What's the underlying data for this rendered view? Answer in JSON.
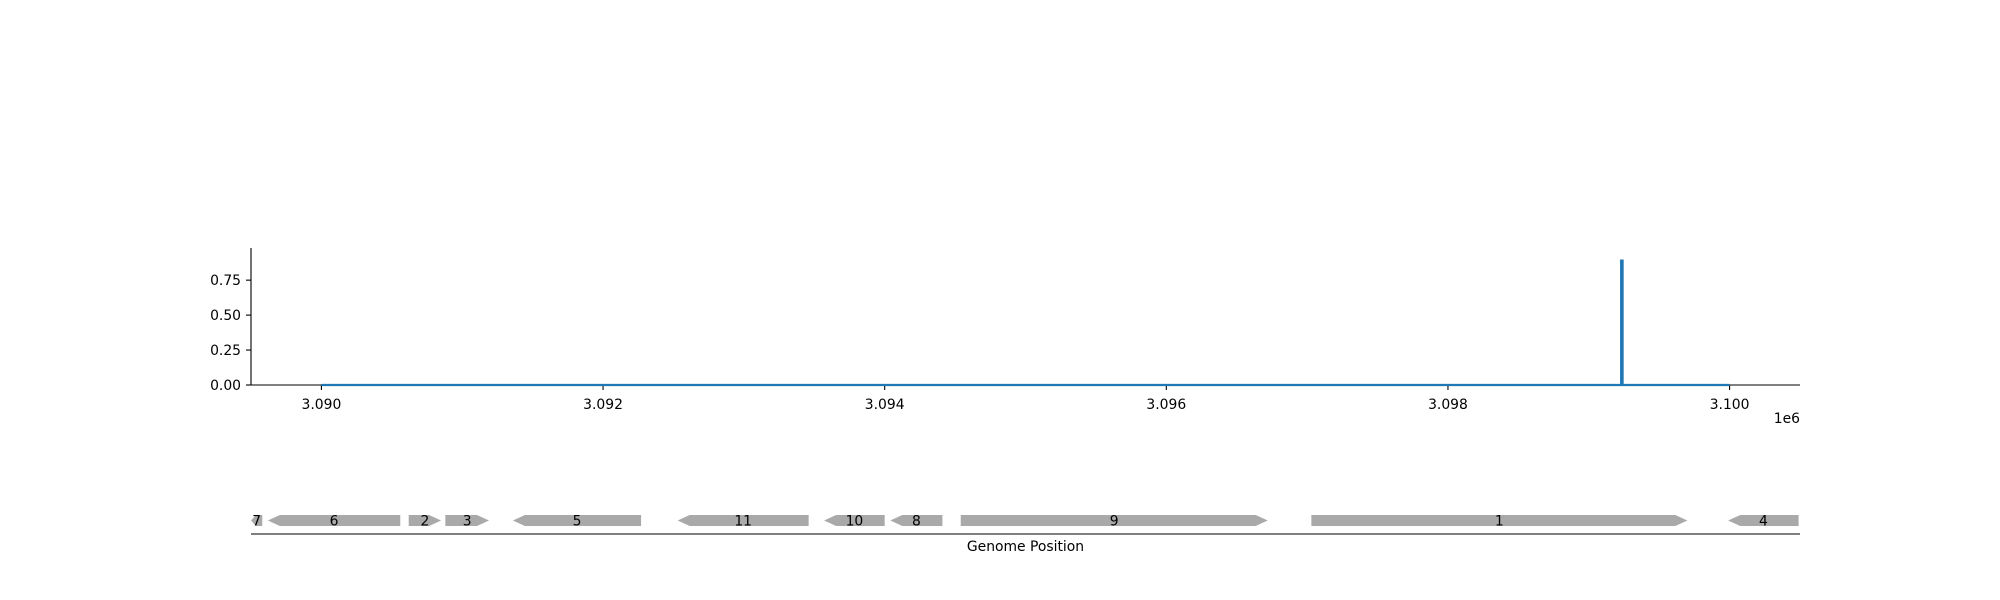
{
  "chart_data": {
    "type": "line",
    "xlabel": "Genome Position",
    "x_offset_label": "1e6",
    "x_ticks": [
      3090000,
      3092000,
      3094000,
      3096000,
      3098000,
      3100000
    ],
    "x_tick_labels": [
      "3.090",
      "3.092",
      "3.094",
      "3.096",
      "3.098",
      "3.100"
    ],
    "xlim": [
      3089500,
      3100500
    ],
    "y_ticks": [
      0.0,
      0.25,
      0.5,
      0.75
    ],
    "y_tick_labels": [
      "0.00",
      "0.25",
      "0.50",
      "0.75"
    ],
    "ylim": [
      0.0,
      0.98
    ],
    "series": [
      {
        "x": [
          3090000,
          3099230,
          3099230,
          3099240,
          3099240,
          3100000
        ],
        "y": [
          0.0,
          0.0,
          0.89,
          0.89,
          0.0,
          0.0
        ]
      }
    ],
    "genes": [
      {
        "label": "7",
        "start": 3089500,
        "end": 3089580,
        "strand": -1
      },
      {
        "label": "6",
        "start": 3089620,
        "end": 3090560,
        "strand": -1
      },
      {
        "label": "2",
        "start": 3090620,
        "end": 3090850,
        "strand": 1
      },
      {
        "label": "3",
        "start": 3090880,
        "end": 3091190,
        "strand": 1
      },
      {
        "label": "5",
        "start": 3091360,
        "end": 3092270,
        "strand": -1
      },
      {
        "label": "11",
        "start": 3092530,
        "end": 3093460,
        "strand": -1
      },
      {
        "label": "10",
        "start": 3093570,
        "end": 3094000,
        "strand": -1
      },
      {
        "label": "8",
        "start": 3094040,
        "end": 3094410,
        "strand": -1
      },
      {
        "label": "9",
        "start": 3094540,
        "end": 3096720,
        "strand": 1
      },
      {
        "label": "1",
        "start": 3097030,
        "end": 3099700,
        "strand": 1
      },
      {
        "label": "4",
        "start": 3099990,
        "end": 3100490,
        "strand": -1
      }
    ],
    "colors": {
      "line": "#1f77b4",
      "gene": "#a9a9a9",
      "axis": "#000000"
    },
    "grid": false
  }
}
